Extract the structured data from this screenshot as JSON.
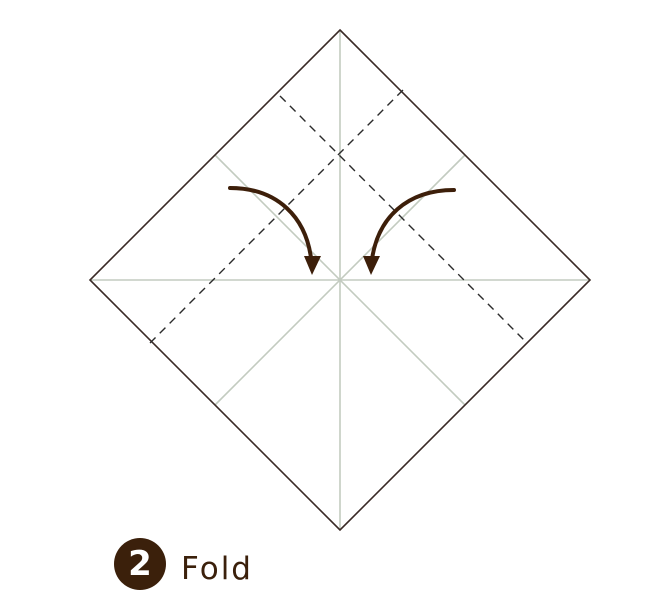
{
  "step": {
    "number": "2",
    "label": "Fold"
  },
  "colors": {
    "outline": "#3a2a26",
    "crease": "#c3cbc0",
    "fold_line": "#2b2b2b",
    "arrow": "#3d1f0a",
    "badge": "#3b200b",
    "label_text": "#3b200b"
  },
  "icons": {
    "badge": "number-circle",
    "arrows": "curved-fold-arrow"
  }
}
